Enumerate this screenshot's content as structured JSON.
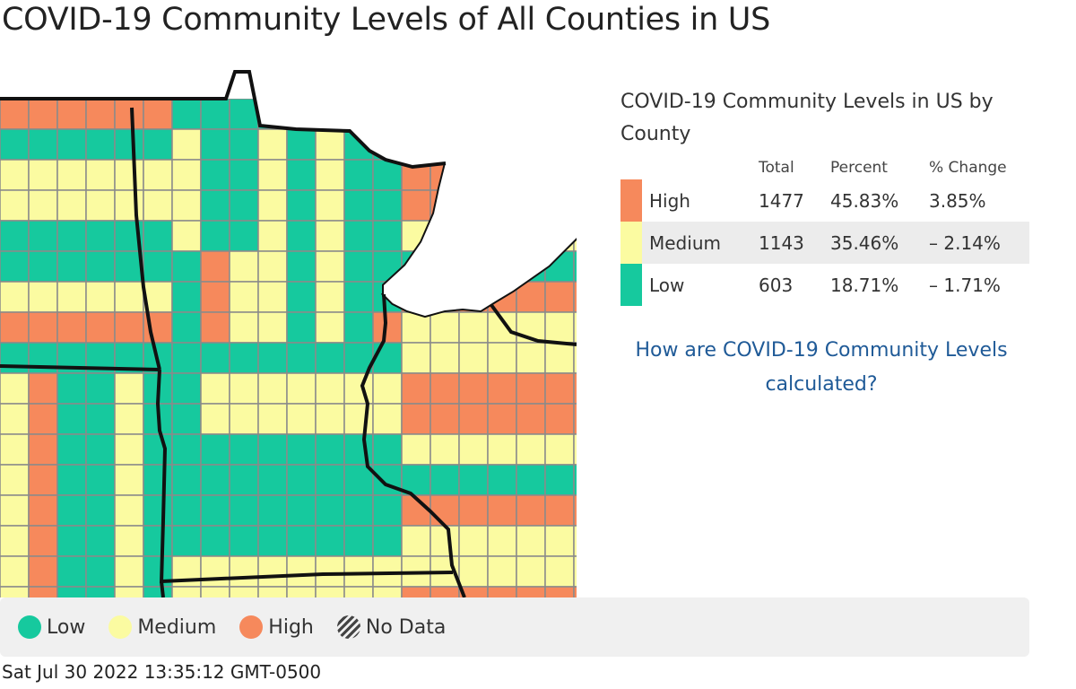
{
  "page": {
    "title": "COVID-19 Community Levels of All Counties in US"
  },
  "colors": {
    "low": "#16c99e",
    "medium": "#fbfba1",
    "high": "#f6895c",
    "water": "#ffffff",
    "county_border": "#8a8a8a",
    "state_border": "#111111"
  },
  "summary": {
    "title": "COVID-19 Community Levels in US by County",
    "headers": {
      "total": "Total",
      "percent": "Percent",
      "change": "% Change"
    },
    "rows": [
      {
        "level": "High",
        "total": "1477",
        "percent": "45.83%",
        "change": "3.85%",
        "color": "#f6895c"
      },
      {
        "level": "Medium",
        "total": "1143",
        "percent": "35.46%",
        "change": "– 2.14%",
        "color": "#fbfba1"
      },
      {
        "level": "Low",
        "total": "603",
        "percent": "18.71%",
        "change": "– 1.71%",
        "color": "#16c99e"
      }
    ]
  },
  "help_link": "How are COVID-19 Community Levels calculated?",
  "legend": [
    {
      "label": "Low",
      "color": "#16c99e",
      "icon": "low-dot-icon"
    },
    {
      "label": "Medium",
      "color": "#fbfba1",
      "icon": "medium-dot-icon"
    },
    {
      "label": "High",
      "color": "#f6895c",
      "icon": "high-dot-icon"
    },
    {
      "label": "No Data",
      "color": "hatched",
      "icon": "no-data-hatch-icon"
    }
  ],
  "timestamp": "Sat Jul 30 2022 13:35:12 GMT-0500"
}
